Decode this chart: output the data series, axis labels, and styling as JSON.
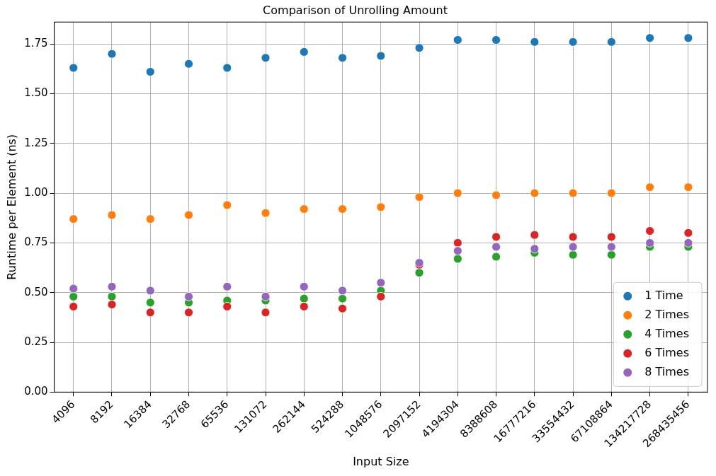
{
  "chart_data": {
    "type": "scatter",
    "title": "Comparison of Unrolling Amount",
    "xlabel": "Input Size",
    "ylabel": "Runtime per Element (ns)",
    "categories": [
      "4096",
      "8192",
      "16384",
      "32768",
      "65536",
      "131072",
      "262144",
      "524288",
      "1048576",
      "2097152",
      "4194304",
      "8388608",
      "16777216",
      "33554432",
      "67108864",
      "134217728",
      "268435456"
    ],
    "series": [
      {
        "name": "1 Time",
        "color": "#1f77b4",
        "values": [
          1.63,
          1.7,
          1.61,
          1.65,
          1.63,
          1.68,
          1.71,
          1.68,
          1.69,
          1.73,
          1.77,
          1.77,
          1.76,
          1.76,
          1.76,
          1.78,
          1.78
        ]
      },
      {
        "name": "2 Times",
        "color": "#ff7f0e",
        "values": [
          0.87,
          0.89,
          0.87,
          0.89,
          0.94,
          0.9,
          0.92,
          0.92,
          0.93,
          0.98,
          1.0,
          0.99,
          1.0,
          1.0,
          1.0,
          1.03,
          1.03
        ]
      },
      {
        "name": "4 Times",
        "color": "#2ca02c",
        "values": [
          0.48,
          0.48,
          0.45,
          0.45,
          0.46,
          0.46,
          0.47,
          0.47,
          0.51,
          0.6,
          0.67,
          0.68,
          0.7,
          0.69,
          0.69,
          0.73,
          0.73
        ]
      },
      {
        "name": "6 Times",
        "color": "#d62728",
        "values": [
          0.43,
          0.44,
          0.4,
          0.4,
          0.43,
          0.4,
          0.43,
          0.42,
          0.48,
          0.64,
          0.75,
          0.78,
          0.79,
          0.78,
          0.78,
          0.81,
          0.8
        ]
      },
      {
        "name": "8 Times",
        "color": "#9467bd",
        "values": [
          0.52,
          0.53,
          0.51,
          0.48,
          0.53,
          0.48,
          0.53,
          0.51,
          0.55,
          0.65,
          0.71,
          0.73,
          0.72,
          0.73,
          0.73,
          0.75,
          0.75
        ]
      }
    ],
    "ylim": [
      0,
      1.86
    ],
    "yticks": [
      {
        "value": 0,
        "label": "0.00"
      },
      {
        "value": 0.25,
        "label": "0.25"
      },
      {
        "value": 0.5,
        "label": "0.50"
      },
      {
        "value": 0.75,
        "label": "0.75"
      },
      {
        "value": 1,
        "label": "1.00"
      },
      {
        "value": 1.25,
        "label": "1.25"
      },
      {
        "value": 1.5,
        "label": "1.50"
      },
      {
        "value": 1.75,
        "label": "1.75"
      }
    ],
    "grid": true,
    "legend": "bottom right",
    "marker": "circle"
  }
}
